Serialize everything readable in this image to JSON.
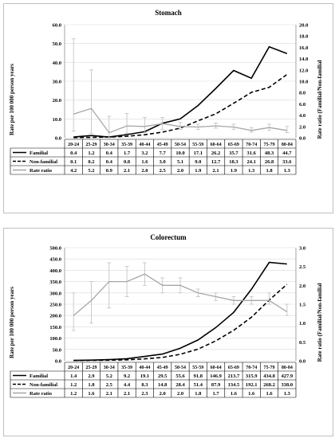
{
  "chart_data": [
    {
      "type": "line",
      "title": "Stomach",
      "ylabel_left": "Rate per 100 000 person years",
      "ylabel_right": "Rate ratio (Familial/Non-familial",
      "ylim_left": [
        0,
        60
      ],
      "yticks_left": [
        "0.0",
        "10.0",
        "20.0",
        "30.0",
        "40.0",
        "50.0",
        "60.0"
      ],
      "ylim_right": [
        0,
        20
      ],
      "yticks_right": [
        "0.0",
        "2.0",
        "4.0",
        "6.0",
        "8.0",
        "10.0",
        "12.0",
        "14.0",
        "16.0",
        "18.0",
        "20.0"
      ],
      "categories": [
        "20-24",
        "25-29",
        "30-34",
        "35-39",
        "40-44",
        "45-49",
        "50-54",
        "55-59",
        "60-64",
        "65-69",
        "70-74",
        "75-79",
        "80-84"
      ],
      "series": [
        {
          "name": "Familial",
          "axis": "left",
          "style": "solid",
          "color": "#000000",
          "values": [
            0.4,
            1.2,
            0.4,
            1.7,
            3.2,
            7.7,
            10.0,
            17.1,
            26.2,
            35.7,
            31.6,
            48.3,
            44.7
          ],
          "labels": [
            "0.4",
            "1.2",
            "0.4",
            "1.7",
            "3.2",
            "7.7",
            "10.0",
            "17.1",
            "26.2",
            "35.7",
            "31.6",
            "48.3",
            "44.7"
          ]
        },
        {
          "name": "Non-familial",
          "axis": "left",
          "style": "dashed",
          "color": "#000000",
          "values": [
            0.1,
            0.2,
            0.4,
            0.8,
            1.6,
            3.0,
            5.1,
            9.0,
            12.7,
            18.3,
            24.1,
            26.8,
            33.6
          ],
          "labels": [
            "0.1",
            "0.2",
            "0.4",
            "0.8",
            "1.6",
            "3.0",
            "5.1",
            "9.0",
            "12.7",
            "18.3",
            "24.1",
            "26.8",
            "33.6"
          ]
        },
        {
          "name": "Rate ratio",
          "axis": "right",
          "style": "solid",
          "color": "#a6a6a6",
          "values": [
            4.2,
            5.2,
            0.9,
            2.1,
            2.0,
            2.5,
            2.0,
            1.9,
            2.1,
            1.9,
            1.3,
            1.8,
            1.3
          ],
          "error_low": [
            1.2,
            0.8,
            0.0,
            0.8,
            0.9,
            1.5,
            1.5,
            1.5,
            1.7,
            1.5,
            1.0,
            1.3,
            0.9
          ],
          "error_high": [
            17.5,
            12.0,
            3.8,
            4.3,
            3.6,
            3.6,
            2.7,
            2.4,
            2.6,
            2.4,
            1.8,
            2.4,
            2.0
          ],
          "labels": [
            "4.2",
            "5.2",
            "0.9",
            "2.1",
            "2.0",
            "2.5",
            "2.0",
            "1.9",
            "2.1",
            "1.9",
            "1.3",
            "1.8",
            "1.3"
          ]
        }
      ],
      "grid": true,
      "legend": "table-below"
    },
    {
      "type": "line",
      "title": "Colorectum",
      "ylabel_left": "Rate per 100 000 person years",
      "ylabel_right": "Rate ratio (Familial/Non-familial",
      "ylim_left": [
        0,
        500
      ],
      "yticks_left": [
        "0.0",
        "50.0",
        "100.0",
        "150.0",
        "200.0",
        "250.0",
        "300.0",
        "350.0",
        "400.0",
        "450.0",
        "500.0"
      ],
      "ylim_right": [
        0,
        3
      ],
      "yticks_right": [
        "0.0",
        "0.5",
        "1.0",
        "1.5",
        "2.0",
        "2.5",
        "3.0"
      ],
      "categories": [
        "20-24",
        "25-29",
        "30-34",
        "35-39",
        "40-44",
        "45-49",
        "50-54",
        "55-59",
        "60-64",
        "65-69",
        "70-74",
        "75-79",
        "80-84"
      ],
      "series": [
        {
          "name": "Familial",
          "axis": "left",
          "style": "solid",
          "color": "#000000",
          "values": [
            1.4,
            2.9,
            5.2,
            9.2,
            19.1,
            29.5,
            55.6,
            91.8,
            146.9,
            213.7,
            315.9,
            434.8,
            427.9
          ],
          "labels": [
            "1.4",
            "2.9",
            "5.2",
            "9.2",
            "19.1",
            "29.5",
            "55.6",
            "91.8",
            "146.9",
            "213.7",
            "315.9",
            "434.8",
            "427.9"
          ]
        },
        {
          "name": "Non-familial",
          "axis": "left",
          "style": "dashed",
          "color": "#000000",
          "values": [
            1.2,
            1.8,
            2.5,
            4.4,
            8.3,
            14.8,
            28.4,
            51.4,
            87.9,
            134.5,
            192.1,
            268.2,
            338.0
          ],
          "labels": [
            "1.2",
            "1.8",
            "2.5",
            "4.4",
            "8.3",
            "14.8",
            "28.4",
            "51.4",
            "87.9",
            "134.5",
            "192.1",
            "268.2",
            "338.0"
          ]
        },
        {
          "name": "Rate ratio",
          "axis": "right",
          "style": "solid",
          "color": "#a6a6a6",
          "values": [
            1.2,
            1.6,
            2.1,
            2.1,
            2.3,
            2.0,
            2.0,
            1.8,
            1.7,
            1.6,
            1.6,
            1.6,
            1.3
          ],
          "error_low": [
            0.8,
            1.0,
            1.4,
            1.7,
            2.0,
            1.8,
            1.8,
            1.7,
            1.6,
            1.5,
            1.5,
            1.5,
            1.2
          ],
          "error_high": [
            1.8,
            2.1,
            2.6,
            2.5,
            2.6,
            2.2,
            2.2,
            1.9,
            1.8,
            1.7,
            1.7,
            1.8,
            1.5
          ],
          "labels": [
            "1.2",
            "1.6",
            "2.1",
            "2.1",
            "2.3",
            "2.0",
            "2.0",
            "1.8",
            "1.7",
            "1.6",
            "1.6",
            "1.6",
            "1.3"
          ]
        }
      ],
      "grid": true,
      "legend": "table-below"
    }
  ]
}
